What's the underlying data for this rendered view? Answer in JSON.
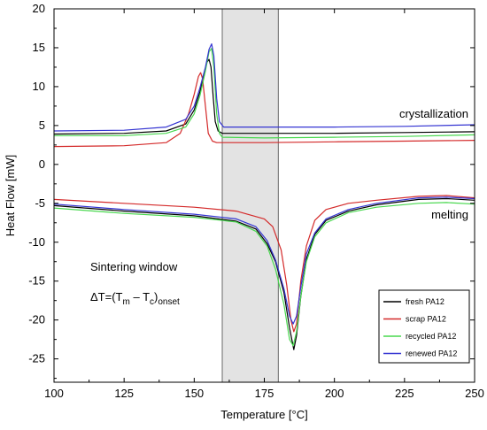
{
  "chart_data": {
    "type": "line",
    "title": "",
    "xlabel": "Temperature [°C]",
    "ylabel": "Heat Flow [mW]",
    "xlim": [
      100,
      250
    ],
    "ylim": [
      -28,
      20
    ],
    "xticks": [
      100,
      125,
      150,
      175,
      200,
      225,
      250
    ],
    "yticks": [
      20,
      15,
      10,
      5,
      0,
      -5,
      -10,
      -15,
      -20,
      -25
    ],
    "grid": false,
    "legend_position": "bottom-right",
    "shaded_region": {
      "x": [
        160,
        180
      ],
      "color": "#e3e3e3"
    },
    "annotations": {
      "crystallization": "crystallization",
      "melting": "melting",
      "sintering_window": "Sintering window",
      "delta_prefix": "ΔT=(T",
      "delta_m": "m",
      "delta_minus": " – T",
      "delta_c": "c",
      "delta_close": ")",
      "delta_onset": "onset"
    },
    "series": [
      {
        "name": "fresh PA12",
        "color": "#000000",
        "cooling": [
          [
            100,
            3.9
          ],
          [
            125,
            4.0
          ],
          [
            140,
            4.3
          ],
          [
            147,
            5.2
          ],
          [
            150,
            7.0
          ],
          [
            152,
            9.3
          ],
          [
            153.5,
            11.6
          ],
          [
            154.5,
            13.1
          ],
          [
            155.3,
            13.5
          ],
          [
            156,
            12.5
          ],
          [
            156.8,
            8.5
          ],
          [
            157.5,
            5.5
          ],
          [
            158.5,
            4.3
          ],
          [
            160,
            4.0
          ],
          [
            175,
            4.0
          ],
          [
            200,
            4.0
          ],
          [
            225,
            4.1
          ],
          [
            250,
            4.2
          ]
        ],
        "heating": [
          [
            100,
            -5.3
          ],
          [
            125,
            -6.0
          ],
          [
            150,
            -6.6
          ],
          [
            165,
            -7.3
          ],
          [
            172,
            -8.3
          ],
          [
            176,
            -10.2
          ],
          [
            179,
            -12.5
          ],
          [
            182,
            -16.5
          ],
          [
            184,
            -21.0
          ],
          [
            185.5,
            -23.8
          ],
          [
            186.5,
            -22.0
          ],
          [
            188,
            -17.0
          ],
          [
            190,
            -12.2
          ],
          [
            193,
            -9.0
          ],
          [
            197,
            -7.2
          ],
          [
            205,
            -6.0
          ],
          [
            215,
            -5.2
          ],
          [
            230,
            -4.5
          ],
          [
            240,
            -4.4
          ],
          [
            250,
            -4.6
          ]
        ]
      },
      {
        "name": "scrap PA12",
        "color": "#d42a2a",
        "cooling": [
          [
            100,
            2.3
          ],
          [
            125,
            2.4
          ],
          [
            140,
            2.8
          ],
          [
            145,
            4.0
          ],
          [
            148,
            6.5
          ],
          [
            150,
            9.0
          ],
          [
            151.5,
            11.3
          ],
          [
            152.3,
            11.8
          ],
          [
            153,
            11.0
          ],
          [
            154,
            7.5
          ],
          [
            155,
            4.0
          ],
          [
            156.5,
            3.0
          ],
          [
            158,
            2.8
          ],
          [
            175,
            2.8
          ],
          [
            200,
            2.9
          ],
          [
            225,
            3.0
          ],
          [
            250,
            3.1
          ]
        ],
        "heating": [
          [
            100,
            -4.5
          ],
          [
            125,
            -5.0
          ],
          [
            150,
            -5.5
          ],
          [
            165,
            -6.0
          ],
          [
            175,
            -7.0
          ],
          [
            178,
            -8.0
          ],
          [
            181,
            -11.0
          ],
          [
            183,
            -15.5
          ],
          [
            184.5,
            -20.0
          ],
          [
            185.5,
            -21.5
          ],
          [
            186.5,
            -20.5
          ],
          [
            188,
            -15.0
          ],
          [
            190,
            -10.5
          ],
          [
            193,
            -7.2
          ],
          [
            197,
            -5.8
          ],
          [
            205,
            -5.0
          ],
          [
            215,
            -4.6
          ],
          [
            230,
            -4.1
          ],
          [
            240,
            -4.0
          ],
          [
            250,
            -4.3
          ]
        ]
      },
      {
        "name": "recycled PA12",
        "color": "#49d84f",
        "cooling": [
          [
            100,
            3.7
          ],
          [
            125,
            3.7
          ],
          [
            140,
            4.0
          ],
          [
            147,
            4.8
          ],
          [
            150,
            6.5
          ],
          [
            152,
            8.8
          ],
          [
            154,
            12.0
          ],
          [
            155.3,
            14.5
          ],
          [
            156.2,
            14.9
          ],
          [
            157,
            12.5
          ],
          [
            158,
            6.5
          ],
          [
            159,
            4.0
          ],
          [
            160,
            3.5
          ],
          [
            175,
            3.4
          ],
          [
            200,
            3.5
          ],
          [
            225,
            3.6
          ],
          [
            250,
            3.8
          ]
        ],
        "heating": [
          [
            100,
            -5.6
          ],
          [
            125,
            -6.3
          ],
          [
            150,
            -6.8
          ],
          [
            165,
            -7.4
          ],
          [
            172,
            -8.6
          ],
          [
            176,
            -10.5
          ],
          [
            179,
            -13.5
          ],
          [
            182,
            -18.0
          ],
          [
            184,
            -22.5
          ],
          [
            185.3,
            -23.3
          ],
          [
            186.5,
            -21.5
          ],
          [
            188,
            -17.0
          ],
          [
            190,
            -12.5
          ],
          [
            193,
            -9.3
          ],
          [
            197,
            -7.5
          ],
          [
            205,
            -6.2
          ],
          [
            215,
            -5.5
          ],
          [
            230,
            -5.0
          ],
          [
            240,
            -4.9
          ],
          [
            250,
            -5.1
          ]
        ]
      },
      {
        "name": "renewed PA12",
        "color": "#3434d2",
        "cooling": [
          [
            100,
            4.3
          ],
          [
            125,
            4.4
          ],
          [
            140,
            4.8
          ],
          [
            147,
            5.8
          ],
          [
            150,
            7.5
          ],
          [
            152,
            9.8
          ],
          [
            154,
            12.5
          ],
          [
            155.3,
            14.8
          ],
          [
            156.2,
            15.5
          ],
          [
            157,
            14.0
          ],
          [
            158,
            8.5
          ],
          [
            159,
            5.5
          ],
          [
            160.5,
            4.8
          ],
          [
            175,
            4.8
          ],
          [
            200,
            4.8
          ],
          [
            225,
            4.9
          ],
          [
            250,
            5.1
          ]
        ],
        "heating": [
          [
            100,
            -5.1
          ],
          [
            125,
            -5.8
          ],
          [
            150,
            -6.4
          ],
          [
            165,
            -7.0
          ],
          [
            172,
            -8.0
          ],
          [
            176,
            -9.8
          ],
          [
            179,
            -12.3
          ],
          [
            182,
            -16.0
          ],
          [
            184,
            -19.5
          ],
          [
            185.3,
            -20.5
          ],
          [
            186.5,
            -19.5
          ],
          [
            188,
            -15.8
          ],
          [
            190,
            -11.5
          ],
          [
            193,
            -8.8
          ],
          [
            197,
            -7.0
          ],
          [
            205,
            -5.8
          ],
          [
            215,
            -5.0
          ],
          [
            230,
            -4.3
          ],
          [
            240,
            -4.2
          ],
          [
            250,
            -4.4
          ]
        ]
      }
    ]
  }
}
